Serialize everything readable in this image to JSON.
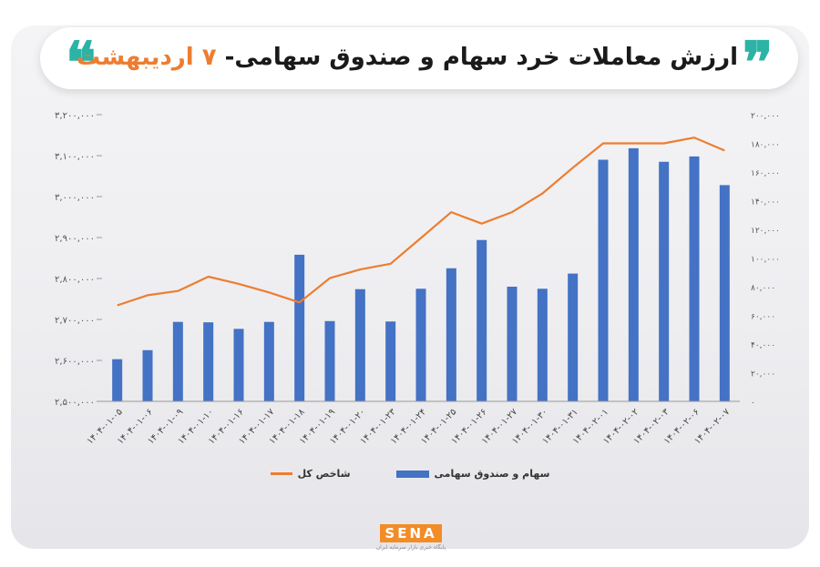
{
  "header": {
    "title_main": "ارزش معاملات خرد سهام و صندوق سهامی- ",
    "title_accent": "۷ اردیبهشت",
    "quote_left": "❝",
    "quote_right": "❞"
  },
  "colors": {
    "bar": "#4472c4",
    "line": "#ed7d31",
    "accent": "#ed7d31",
    "quote": "#2bb3a6",
    "title": "#1a1a1a",
    "logo": "#f28c28"
  },
  "chart_data": {
    "type": "bar+line",
    "categories": [
      "۱۴۰۴-۰۱-۰۵",
      "۱۴۰۴-۰۱-۰۶",
      "۱۴۰۴-۰۱-۰۹",
      "۱۴۰۴-۰۱-۱۰",
      "۱۴۰۴-۰۱-۱۶",
      "۱۴۰۴-۰۱-۱۷",
      "۱۴۰۴-۰۱-۱۸",
      "۱۴۰۴-۰۱-۱۹",
      "۱۴۰۴-۰۱-۲۰",
      "۱۴۰۴-۰۱-۲۳",
      "۱۴۰۴-۰۱-۲۴",
      "۱۴۰۴-۰۱-۲۵",
      "۱۴۰۴-۰۱-۲۶",
      "۱۴۰۴-۰۱-۲۷",
      "۱۴۰۴-۰۱-۳۰",
      "۱۴۰۴-۰۱-۳۱",
      "۱۴۰۴-۰۲-۰۱",
      "۱۴۰۴-۰۲-۰۲",
      "۱۴۰۴-۰۲-۰۳",
      "۱۴۰۴-۰۲-۰۶",
      "۱۴۰۴-۰۲-۰۷"
    ],
    "series": [
      {
        "name": "سهام و صندوق سهامی",
        "type": "bar",
        "axis": "left",
        "values": [
          2603000,
          2625000,
          2694000,
          2693000,
          2677000,
          2694000,
          2858000,
          2696000,
          2774000,
          2695000,
          2775000,
          2825000,
          2894000,
          2780000,
          2775000,
          2812000,
          3090000,
          3118000,
          3085000,
          3098000,
          3028000
        ]
      },
      {
        "name": "شاخص کل",
        "type": "line",
        "axis": "right",
        "values": [
          67000,
          74000,
          77000,
          87000,
          82000,
          76000,
          69000,
          86000,
          92000,
          96000,
          114000,
          132000,
          124000,
          132000,
          145000,
          163000,
          180000,
          180000,
          180000,
          184000,
          175000
        ]
      }
    ],
    "y_left": {
      "min": 2500000,
      "max": 3200000,
      "step": 100000,
      "ticks": [
        "۲,۵۰۰,۰۰۰",
        "۲,۶۰۰,۰۰۰",
        "۲,۷۰۰,۰۰۰",
        "۲,۸۰۰,۰۰۰",
        "۲,۹۰۰,۰۰۰",
        "۳,۰۰۰,۰۰۰",
        "۳,۱۰۰,۰۰۰",
        "۳,۲۰۰,۰۰۰"
      ]
    },
    "y_right": {
      "min": 0,
      "max": 200000,
      "step": 20000,
      "ticks": [
        "۰",
        "۲۰,۰۰۰",
        "۴۰,۰۰۰",
        "۶۰,۰۰۰",
        "۸۰,۰۰۰",
        "۱۰۰,۰۰۰",
        "۱۲۰,۰۰۰",
        "۱۴۰,۰۰۰",
        "۱۶۰,۰۰۰",
        "۱۸۰,۰۰۰",
        "۲۰۰,۰۰۰"
      ]
    },
    "grid": false,
    "legend_position": "bottom"
  },
  "legend": {
    "bar_label": "سهام و صندوق سهامی",
    "line_label": "شاخص کل"
  },
  "logo": {
    "word": "SENA",
    "sub": "پایگاه خبری بازار سرمایه ایران"
  }
}
